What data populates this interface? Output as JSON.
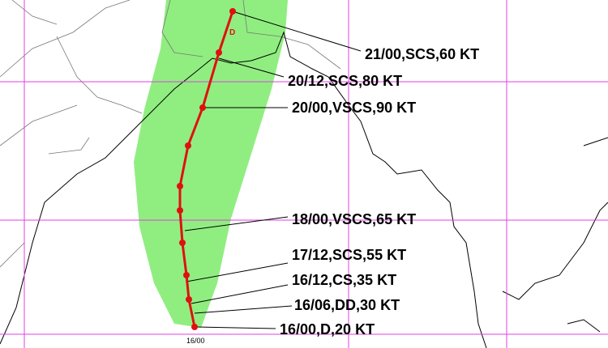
{
  "track_labels": [
    "21/00,SCS,60 KT",
    "20/12,SCS,80 KT",
    "20/00,VSCS,90 KT",
    "18/00,VSCS,65 KT",
    "17/12,SCS,55 KT",
    "16/12,CS,35 KT",
    "16/06,DD,30 KT",
    "16/00,D,20 KT"
  ],
  "start_time": "16/00",
  "landfall_marker": "D"
}
